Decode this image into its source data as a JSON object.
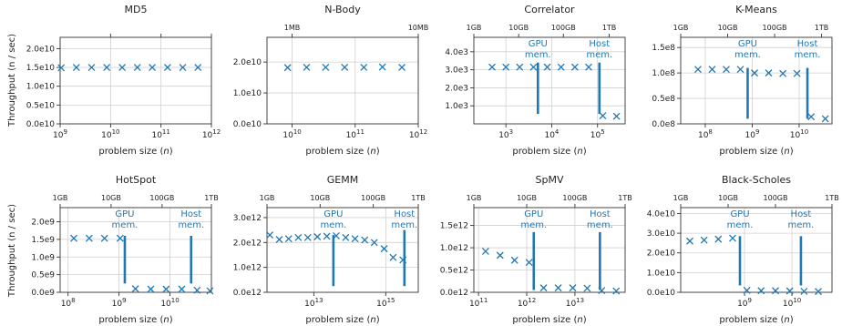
{
  "y_axis_label": "Throughput (n / sec)",
  "series_color": "#1f77b4",
  "chart_data": [
    {
      "type": "scatter",
      "title": "MD5",
      "xlabel": "problem size (n)",
      "xscale": "log",
      "xlim": [
        1000000000.0,
        1000000000000.0
      ],
      "x_ticks": [
        1000000000.0,
        10000000000.0,
        100000000000.0,
        1000000000000.0
      ],
      "x_tick_labels": [
        "10^9",
        "10^10",
        "10^11",
        "10^12"
      ],
      "ylim": [
        0,
        23000000000.0
      ],
      "y_ticks": [
        0,
        5000000000.0,
        10000000000.0,
        15000000000.0,
        20000000000.0
      ],
      "y_tick_labels": [
        "0.0e10",
        "0.5e10",
        "1.0e10",
        "1.5e10",
        "2.0e10"
      ],
      "top_ticks": [
        10000000000.0,
        100000000000.0,
        1000000000000.0
      ],
      "top_labels": [],
      "x": [
        1050000000.0,
        2100000000.0,
        4200000000.0,
        8400000000.0,
        17000000000.0,
        34000000000.0,
        67000000000.0,
        135000000000.0,
        270000000000.0,
        540000000000.0
      ],
      "y": [
        14900000000.0,
        15000000000.0,
        15000000000.0,
        15000000000.0,
        15000000000.0,
        15000000000.0,
        15000000000.0,
        15000000000.0,
        15000000000.0,
        15000000000.0
      ],
      "annotations": []
    },
    {
      "type": "scatter",
      "title": "N-Body",
      "xlabel": "problem size (n)",
      "xscale": "log",
      "xlim": [
        4000000000.0,
        1000000000000.0
      ],
      "x_ticks": [
        10000000000.0,
        100000000000.0,
        1000000000000.0
      ],
      "x_tick_labels": [
        "10^10",
        "10^11",
        "10^12"
      ],
      "ylim": [
        0,
        28000000000.0
      ],
      "y_ticks": [
        0,
        10000000000.0,
        20000000000.0
      ],
      "y_tick_labels": [
        "0.0e10",
        "1.0e10",
        "2.0e10"
      ],
      "top_ticks": [
        10000000000.0,
        1000000000000.0
      ],
      "top_labels": [
        "1MB",
        "10MB"
      ],
      "x": [
        8500000000.0,
        17000000000.0,
        34000000000.0,
        68000000000.0,
        137000000000.0,
        270000000000.0,
        550000000000.0
      ],
      "y": [
        18200000000.0,
        18300000000.0,
        18300000000.0,
        18300000000.0,
        18300000000.0,
        18400000000.0,
        18300000000.0
      ],
      "annotations": []
    },
    {
      "type": "scatter",
      "title": "Correlator",
      "xlabel": "problem size (n)",
      "xscale": "log",
      "xlim": [
        200,
        400000
      ],
      "x_ticks": [
        1000,
        10000,
        100000
      ],
      "x_tick_labels": [
        "10^3",
        "10^4",
        "10^5"
      ],
      "ylim": [
        0,
        4800
      ],
      "y_ticks": [
        1000,
        2000,
        3000,
        4000
      ],
      "y_tick_labels": [
        "1.0e3",
        "2.0e3",
        "3.0e3",
        "4.0e3"
      ],
      "top_ticks": [
        200,
        1900,
        18000,
        180000
      ],
      "top_labels": [
        "1GB",
        "10GB",
        "100GB",
        "1TB"
      ],
      "x": [
        500,
        1000,
        2000,
        4000,
        8000,
        16000,
        32000,
        64000,
        130000,
        260000
      ],
      "y": [
        3150,
        3150,
        3150,
        3150,
        3150,
        3150,
        3150,
        3150,
        450,
        420
      ],
      "annotations": [
        {
          "label": [
            "GPU",
            "mem."
          ],
          "x": 5000,
          "y_top": 3400,
          "y_bottom": 550
        },
        {
          "label": [
            "Host",
            "mem."
          ],
          "x": 110000,
          "y_top": 3400,
          "y_bottom": 550
        }
      ]
    },
    {
      "type": "scatter",
      "title": "K-Means",
      "xlabel": "problem size (n)",
      "xscale": "log",
      "xlim": [
        30000000.0,
        50000000000.0
      ],
      "x_ticks": [
        100000000.0,
        1000000000.0,
        10000000000.0
      ],
      "x_tick_labels": [
        "10^8",
        "10^9",
        "10^10"
      ],
      "ylim": [
        0,
        170000000.0
      ],
      "y_ticks": [
        0,
        50000000.0,
        100000000.0,
        150000000.0
      ],
      "y_tick_labels": [
        "0.0e8",
        "0.5e8",
        "1.0e8",
        "1.5e8"
      ],
      "top_ticks": [
        30000000.0,
        300000000.0,
        3000000000.0,
        30000000000.0
      ],
      "top_labels": [
        "1GB",
        "10GB",
        "100GB",
        "1TB"
      ],
      "x": [
        70000000.0,
        140000000.0,
        280000000.0,
        560000000.0,
        1120000000.0,
        2240000000.0,
        4500000000.0,
        9000000000.0,
        18000000000.0,
        36000000000.0
      ],
      "y": [
        107000000.0,
        107000000.0,
        107000000.0,
        107000000.0,
        100000000.0,
        100000000.0,
        99000000.0,
        99000000.0,
        14000000.0,
        10000000.0
      ],
      "annotations": [
        {
          "label": [
            "GPU",
            "mem."
          ],
          "x": 800000000.0,
          "y_top": 110000000.0,
          "y_bottom": 10000000.0
        },
        {
          "label": [
            "Host",
            "mem."
          ],
          "x": 15000000000.0,
          "y_top": 110000000.0,
          "y_bottom": 10000000.0
        }
      ]
    },
    {
      "type": "scatter",
      "title": "HotSpot",
      "xlabel": "problem size (n)",
      "xscale": "log",
      "xlim": [
        70000000.0,
        65000000000.0
      ],
      "x_ticks": [
        100000000.0,
        1000000000.0,
        10000000000.0
      ],
      "x_tick_labels": [
        "10^8",
        "10^9",
        "10^10"
      ],
      "ylim": [
        0,
        2400000000.0
      ],
      "y_ticks": [
        0,
        500000000.0,
        1000000000.0,
        1500000000.0,
        2000000000.0
      ],
      "y_tick_labels": [
        "0.0e9",
        "0.5e9",
        "1.0e9",
        "1.5e9",
        "2.0e9"
      ],
      "top_ticks": [
        70000000.0,
        700000000.0,
        7000000000.0,
        65000000000.0
      ],
      "top_labels": [
        "1GB",
        "10GB",
        "100GB",
        "1TB"
      ],
      "x": [
        130000000.0,
        260000000.0,
        520000000.0,
        1050000000.0,
        2100000000.0,
        4200000000.0,
        8400000000.0,
        17000000000.0,
        34000000000.0,
        61000000000.0
      ],
      "y": [
        1530000000.0,
        1530000000.0,
        1530000000.0,
        1530000000.0,
        100000000.0,
        90000000.0,
        90000000.0,
        90000000.0,
        60000000.0,
        40000000.0
      ],
      "annotations": [
        {
          "label": [
            "GPU",
            "mem."
          ],
          "x": 1300000000.0,
          "y_top": 1600000000.0,
          "y_bottom": 250000000.0
        },
        {
          "label": [
            "Host",
            "mem."
          ],
          "x": 26000000000.0,
          "y_top": 1600000000.0,
          "y_bottom": 250000000.0
        }
      ]
    },
    {
      "type": "scatter",
      "title": "GEMM",
      "xlabel": "problem size (n)",
      "xscale": "log",
      "xlim": [
        500000000000.0,
        8000000000000000.0
      ],
      "x_ticks": [
        10000000000000.0,
        1000000000000000.0
      ],
      "x_tick_labels": [
        "10^13",
        "10^15"
      ],
      "ylim": [
        0,
        3400000000000.0
      ],
      "y_ticks": [
        0,
        1000000000000.0,
        2000000000000.0,
        3000000000000.0
      ],
      "y_tick_labels": [
        "0.0e12",
        "1.0e12",
        "2.0e12",
        "3.0e12"
      ],
      "top_ticks": [
        500000000000.0,
        15000000000000.0,
        450000000000000.0,
        8000000000000000.0
      ],
      "top_labels": [
        "1GB",
        "10GB",
        "100GB",
        "1TB"
      ],
      "x": [
        600000000000.0,
        1100000000000.0,
        2000000000000.0,
        3700000000000.0,
        6800000000000.0,
        12500000000000.0,
        23000000000000.0,
        42000000000000.0,
        77000000000000.0,
        140000000000000.0,
        260000000000000.0,
        480000000000000.0,
        900000000000000.0,
        1600000000000000.0,
        3000000000000000.0
      ],
      "y": [
        2300000000000.0,
        2120000000000.0,
        2150000000000.0,
        2200000000000.0,
        2200000000000.0,
        2230000000000.0,
        2250000000000.0,
        2270000000000.0,
        2200000000000.0,
        2150000000000.0,
        2100000000000.0,
        2000000000000.0,
        1750000000000.0,
        1400000000000.0,
        1300000000000.0
      ],
      "annotations": [
        {
          "label": [
            "GPU",
            "mem."
          ],
          "x": 35000000000000.0,
          "y_top": 2300000000000.0,
          "y_bottom": 250000000000.0
        },
        {
          "label": [
            "Host",
            "mem."
          ],
          "x": 3300000000000000.0,
          "y_top": 2500000000000.0,
          "y_bottom": 250000000000.0
        }
      ]
    },
    {
      "type": "scatter",
      "title": "SpMV",
      "xlabel": "problem size (n)",
      "xscale": "log",
      "xlim": [
        80000000000.0,
        110000000000000.0
      ],
      "x_ticks": [
        100000000000.0,
        1000000000000.0,
        10000000000000.0
      ],
      "x_tick_labels": [
        "10^11",
        "10^12",
        "10^13"
      ],
      "ylim": [
        0,
        1900000000000.0
      ],
      "y_ticks": [
        0,
        500000000000.0,
        1000000000000.0,
        1500000000000.0
      ],
      "y_tick_labels": [
        "0.0e12",
        "0.5e12",
        "1.0e12",
        "1.5e12"
      ],
      "top_ticks": [
        80000000000.0,
        1000000000000.0,
        10000000000000.0,
        110000000000000.0
      ],
      "top_labels": [
        "1GB",
        "10GB",
        "100GB",
        "1TB"
      ],
      "x": [
        140000000000.0,
        280000000000.0,
        560000000000.0,
        1120000000000.0,
        2240000000000.0,
        4500000000000.0,
        9000000000000.0,
        18000000000000.0,
        36000000000000.0,
        72000000000000.0
      ],
      "y": [
        920000000000.0,
        830000000000.0,
        720000000000.0,
        670000000000.0,
        100000000000.0,
        100000000000.0,
        100000000000.0,
        90000000000.0,
        40000000000.0,
        30000000000.0
      ],
      "annotations": [
        {
          "label": [
            "GPU",
            "mem."
          ],
          "x": 1400000000000.0,
          "y_top": 1350000000000.0,
          "y_bottom": 50000000000.0
        },
        {
          "label": [
            "Host",
            "mem."
          ],
          "x": 33000000000000.0,
          "y_top": 1350000000000.0,
          "y_bottom": 50000000000.0
        }
      ]
    },
    {
      "type": "scatter",
      "title": "Black-Scholes",
      "xlabel": "problem size (n)",
      "xscale": "log",
      "xlim": [
        45000000.0,
        70000000000.0
      ],
      "x_ticks": [
        1000000000.0,
        10000000000.0
      ],
      "x_tick_labels": [
        "10^9",
        "10^10"
      ],
      "ylim": [
        0,
        43000000000.0
      ],
      "y_ticks": [
        0,
        10000000000.0,
        20000000000.0,
        30000000000.0,
        40000000000.0
      ],
      "y_tick_labels": [
        "0.0e10",
        "1.0e10",
        "2.0e10",
        "3.0e10",
        "4.0e10"
      ],
      "top_ticks": [
        45000000.0,
        450000000.0,
        4500000000.0,
        70000000000.0
      ],
      "top_labels": [
        "1GB",
        "10GB",
        "100GB",
        "1TB"
      ],
      "x": [
        70000000.0,
        140000000.0,
        280000000.0,
        560000000.0,
        1120000000.0,
        2240000000.0,
        4500000000.0,
        9000000000.0,
        18000000000.0,
        36000000000.0
      ],
      "y": [
        26000000000.0,
        26500000000.0,
        27000000000.0,
        27500000000.0,
        1000000000.0,
        800000000.0,
        800000000.0,
        700000000.0,
        500000000.0,
        400000000.0
      ],
      "annotations": [
        {
          "label": [
            "GPU",
            "mem."
          ],
          "x": 800000000.0,
          "y_top": 28500000000.0,
          "y_bottom": 3500000000.0
        },
        {
          "label": [
            "Host",
            "mem."
          ],
          "x": 15500000000.0,
          "y_top": 28500000000.0,
          "y_bottom": 3500000000.0
        }
      ]
    }
  ]
}
